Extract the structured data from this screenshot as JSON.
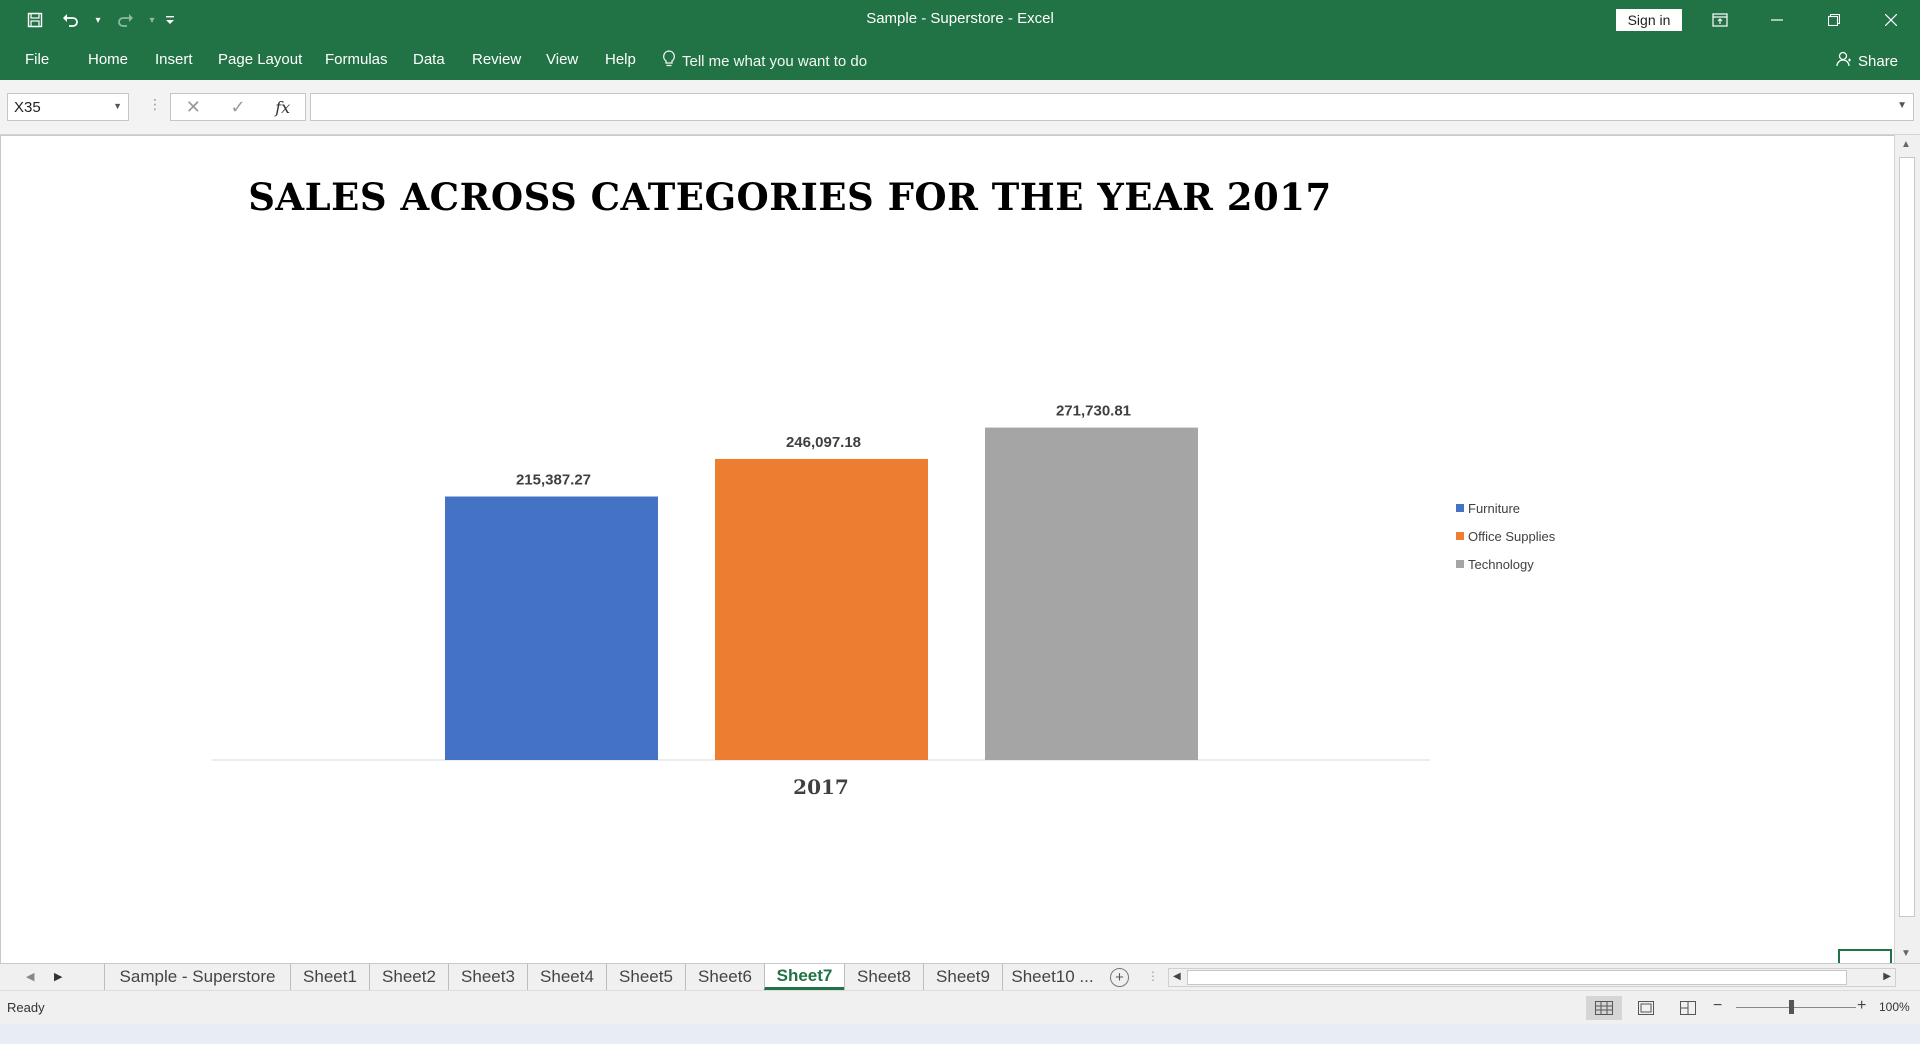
{
  "window": {
    "title": "Sample - Superstore  -  Excel",
    "sign_in": "Sign in"
  },
  "ribbon": {
    "tabs": [
      "File",
      "Home",
      "Insert",
      "Page Layout",
      "Formulas",
      "Data",
      "Review",
      "View",
      "Help"
    ],
    "tell_me": "Tell me what you want to do",
    "share": "Share"
  },
  "formula_bar": {
    "name_box": "X35",
    "formula": ""
  },
  "chart_data": {
    "type": "bar",
    "title": "SALES ACROSS CATEGORIES FOR THE YEAR 2017",
    "categories": [
      "2017"
    ],
    "series": [
      {
        "name": "Furniture",
        "values": [
          215387.27
        ],
        "label": "215,387.27",
        "color": "#4472C4"
      },
      {
        "name": "Office Supplies",
        "values": [
          246097.18
        ],
        "label": "246,097.18",
        "color": "#ED7D31"
      },
      {
        "name": "Technology",
        "values": [
          271730.81
        ],
        "label": "271,730.81",
        "color": "#A5A5A5"
      }
    ],
    "ylim": [
      0,
      300000
    ],
    "grid": false,
    "legend": "right"
  },
  "sheet_tabs": {
    "tabs": [
      "Sample - Superstore",
      "Sheet1",
      "Sheet2",
      "Sheet3",
      "Sheet4",
      "Sheet5",
      "Sheet6",
      "Sheet7",
      "Sheet8",
      "Sheet9",
      "Sheet10 ..."
    ],
    "active": "Sheet7"
  },
  "status": {
    "text": "Ready",
    "zoom": "100%"
  }
}
